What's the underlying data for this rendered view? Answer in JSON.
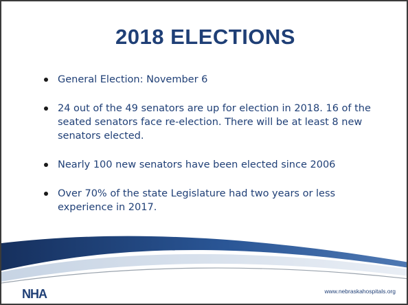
{
  "slide": {
    "title": "2018 ELECTIONS",
    "bullets": [
      "General Election: November 6",
      "24 out of the 49 senators are up for election in 2018.  16 of the seated senators face re-election.   There will be at least 8 new senators elected.",
      "Nearly 100 new senators have been elected since 2006",
      "Over 70% of the state Legislature had two years or less experience in 2017."
    ],
    "logo_text": "NHA",
    "footer_url": "www.nebraskahospitals.org"
  },
  "colors": {
    "title": "#1f3f76",
    "body_text": "#1f3f76",
    "swoosh_dark": "#1f3f76",
    "swoosh_light": "#8fa9c8",
    "border": "#3a3a3a"
  }
}
